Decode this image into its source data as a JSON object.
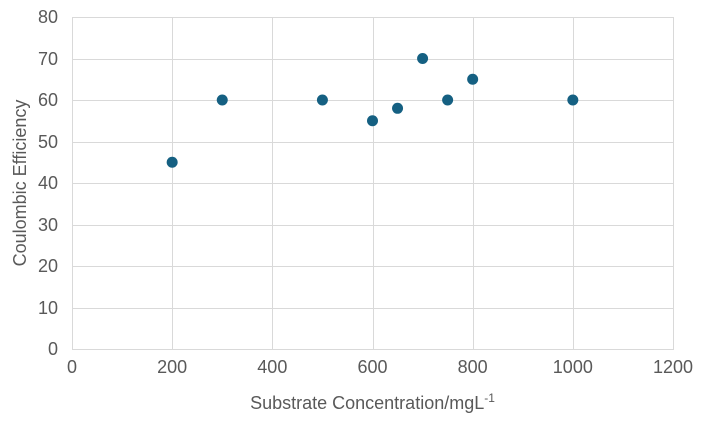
{
  "chart_data": {
    "type": "scatter",
    "title": "",
    "xlabel": "Substrate Concentration/mgL⁻¹",
    "xlabel_base": "Substrate Concentration/mgL",
    "xlabel_superscript": "-1",
    "ylabel": "Coulombic Efficiency",
    "xlim": [
      0,
      1200
    ],
    "ylim": [
      0,
      80
    ],
    "xticks": [
      0,
      200,
      400,
      600,
      800,
      1000,
      1200
    ],
    "yticks": [
      0,
      10,
      20,
      30,
      40,
      50,
      60,
      70,
      80
    ],
    "grid": true,
    "legend_position": "none",
    "series": [
      {
        "name": "Coulombic Efficiency",
        "points": [
          {
            "x": 200,
            "y": 45
          },
          {
            "x": 300,
            "y": 60
          },
          {
            "x": 500,
            "y": 60
          },
          {
            "x": 600,
            "y": 55
          },
          {
            "x": 650,
            "y": 58
          },
          {
            "x": 700,
            "y": 70
          },
          {
            "x": 750,
            "y": 60
          },
          {
            "x": 800,
            "y": 65
          },
          {
            "x": 1000,
            "y": 60
          }
        ]
      }
    ],
    "colors": {
      "marker": "#156082",
      "gridline": "#d9d9d9",
      "plot_border": "#d9d9d9",
      "axis_text": "#595959",
      "background": "#ffffff"
    }
  }
}
